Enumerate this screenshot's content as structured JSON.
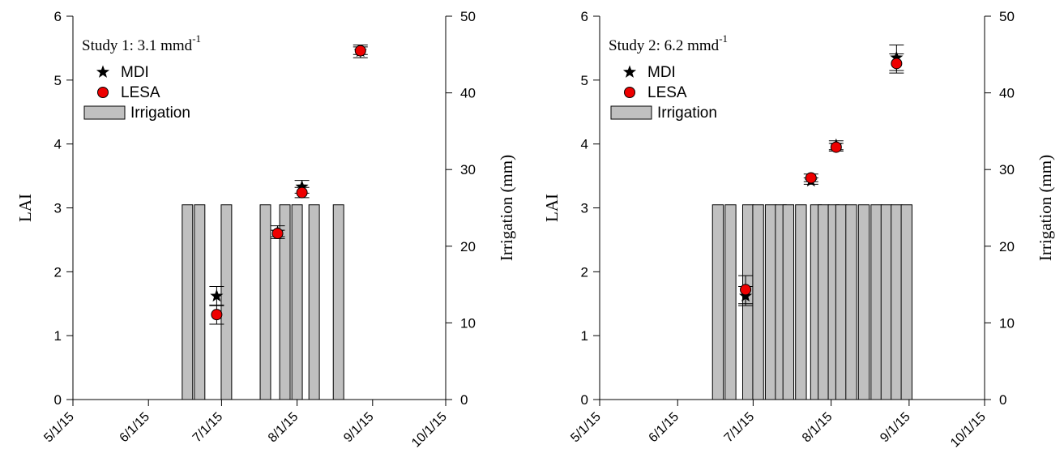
{
  "chart_data": [
    {
      "type": "bar",
      "annotation": "Study 1: 3.1 mmd",
      "annotation_sup": "-1",
      "ylabel": "LAI",
      "y2label": "Irrigation (mm)",
      "xlim": [
        "5/1/15",
        "10/1/15"
      ],
      "xticks": [
        "5/1/15",
        "6/1/15",
        "7/1/15",
        "8/1/15",
        "9/1/15",
        "10/1/15"
      ],
      "ylim": [
        0,
        6
      ],
      "yticks": [
        "0",
        "1",
        "2",
        "3",
        "4",
        "5",
        "6"
      ],
      "y2lim": [
        0,
        50
      ],
      "y2ticks": [
        "0",
        "10",
        "20",
        "30",
        "40",
        "50"
      ],
      "legend": {
        "placement": "top-left",
        "entries": [
          {
            "label": "MDI",
            "marker": "star",
            "color": "#000000"
          },
          {
            "label": "LESA",
            "marker": "circle",
            "color": "#ee0000"
          },
          {
            "label": "Irrigation",
            "marker": "bar",
            "color": "#c0c0c0"
          }
        ]
      },
      "irrigation": {
        "name": "Irrigation",
        "dates": [
          "6/17/15",
          "6/22/15",
          "7/3/15",
          "7/19/15",
          "7/27/15",
          "8/1/15",
          "8/8/15",
          "8/18/15"
        ],
        "values": [
          25.4,
          25.4,
          25.4,
          25.4,
          25.4,
          25.4,
          25.4,
          25.4
        ]
      },
      "series": [
        {
          "name": "MDI",
          "marker": "star",
          "dates": [
            "6/29/15",
            "7/24/15",
            "8/3/15",
            "8/27/15"
          ],
          "values": [
            1.62,
            2.62,
            3.33,
            5.45
          ],
          "errors": [
            0.15,
            0.1,
            0.1,
            0.1
          ]
        },
        {
          "name": "LESA",
          "marker": "circle",
          "dates": [
            "6/29/15",
            "7/24/15",
            "8/3/15",
            "8/27/15"
          ],
          "values": [
            1.33,
            2.6,
            3.24,
            5.46
          ],
          "errors": [
            0.15,
            0.05,
            0.08,
            0.06
          ]
        }
      ]
    },
    {
      "type": "bar",
      "annotation": "Study 2: 6.2 mmd",
      "annotation_sup": "-1",
      "ylabel": "LAI",
      "y2label": "Irrigation (mm)",
      "xlim": [
        "5/1/15",
        "10/1/15"
      ],
      "xticks": [
        "5/1/15",
        "6/1/15",
        "7/1/15",
        "8/1/15",
        "9/1/15",
        "10/1/15"
      ],
      "ylim": [
        0,
        6
      ],
      "yticks": [
        "0",
        "1",
        "2",
        "3",
        "4",
        "5",
        "6"
      ],
      "y2lim": [
        0,
        50
      ],
      "y2ticks": [
        "0",
        "10",
        "20",
        "30",
        "40",
        "50"
      ],
      "legend": {
        "placement": "top-left",
        "entries": [
          {
            "label": "MDI",
            "marker": "star",
            "color": "#000000"
          },
          {
            "label": "LESA",
            "marker": "circle",
            "color": "#ee0000"
          },
          {
            "label": "Irrigation",
            "marker": "bar",
            "color": "#c0c0c0"
          }
        ]
      },
      "irrigation": {
        "name": "Irrigation",
        "dates": [
          "6/17/15",
          "6/22/15",
          "6/29/15",
          "7/3/15",
          "7/8/15",
          "7/12/15",
          "7/15/15",
          "7/20/15",
          "7/26/15",
          "7/29/15",
          "8/2/15",
          "8/5/15",
          "8/9/15",
          "8/14/15",
          "8/19/15",
          "8/23/15",
          "8/27/15",
          "8/31/15"
        ],
        "values": [
          25.4,
          25.4,
          25.4,
          25.4,
          25.4,
          25.4,
          25.4,
          25.4,
          25.4,
          25.4,
          25.4,
          25.4,
          25.4,
          25.4,
          25.4,
          25.4,
          25.4,
          25.4
        ]
      },
      "series": [
        {
          "name": "MDI",
          "marker": "star",
          "dates": [
            "6/28/15",
            "7/24/15",
            "8/3/15",
            "8/27/15"
          ],
          "values": [
            1.62,
            3.42,
            3.98,
            5.35
          ],
          "errors": [
            0.15,
            0.05,
            0.07,
            0.2
          ]
        },
        {
          "name": "LESA",
          "marker": "circle",
          "dates": [
            "6/28/15",
            "7/24/15",
            "8/3/15",
            "8/27/15"
          ],
          "values": [
            1.72,
            3.47,
            3.95,
            5.26
          ],
          "errors": [
            0.22,
            0.06,
            0.06,
            0.15
          ]
        }
      ]
    }
  ]
}
